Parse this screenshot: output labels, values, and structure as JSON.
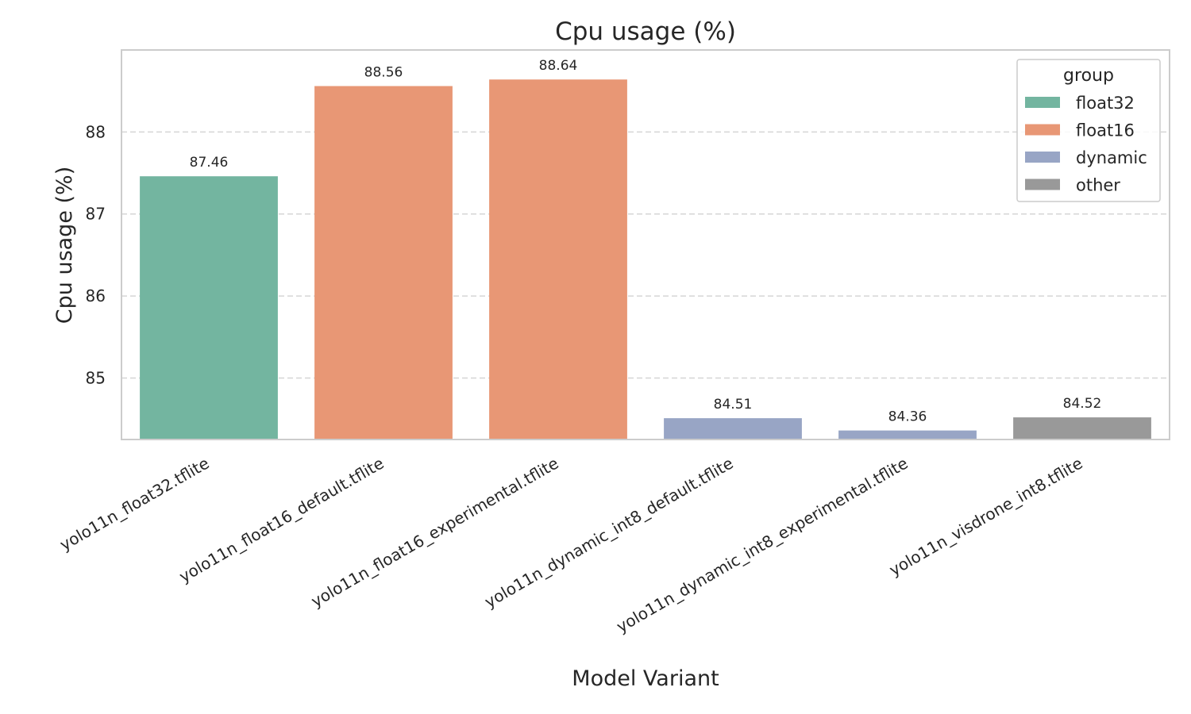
{
  "chart_data": {
    "type": "bar",
    "title": "Cpu usage (%)",
    "xlabel": "Model Variant",
    "ylabel": "Cpu usage (%)",
    "ylim": [
      84.25,
      89.0
    ],
    "yticks": [
      85,
      86,
      87,
      88
    ],
    "grid": true,
    "legend_position": "top-right",
    "legend_title": "group",
    "legend": [
      {
        "name": "float32",
        "color": "#73b5a0"
      },
      {
        "name": "float16",
        "color": "#e89775"
      },
      {
        "name": "dynamic",
        "color": "#98a5c5"
      },
      {
        "name": "other",
        "color": "#999999"
      }
    ],
    "categories": [
      "yolo11n_float32.tflite",
      "yolo11n_float16_default.tflite",
      "yolo11n_float16_experimental.tflite",
      "yolo11n_dynamic_int8_default.tflite",
      "yolo11n_dynamic_int8_experimental.tflite",
      "yolo11n_visdrone_int8.tflite"
    ],
    "values": [
      87.46,
      88.56,
      88.64,
      84.51,
      84.36,
      84.52
    ],
    "value_labels": [
      "87.46",
      "88.56",
      "88.64",
      "84.51",
      "84.36",
      "84.52"
    ],
    "groups": [
      "float32",
      "float16",
      "float16",
      "dynamic",
      "dynamic",
      "other"
    ]
  }
}
